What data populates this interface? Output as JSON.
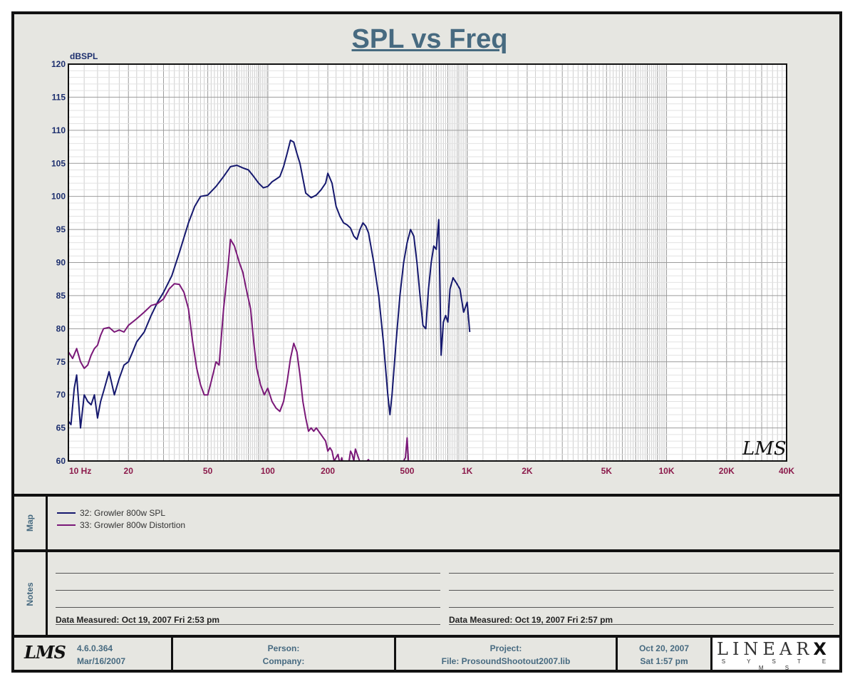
{
  "chart_data": {
    "type": "line",
    "title": "SPL vs Freq",
    "ylabel": "dBSPL",
    "ylim": [
      60,
      120
    ],
    "xlim": [
      10,
      40000
    ],
    "xscale": "log",
    "grid": true,
    "ytick_labels": [
      "120",
      "115",
      "110",
      "105",
      "100",
      "95",
      "90",
      "85",
      "80",
      "75",
      "70",
      "65",
      "60"
    ],
    "xticks": [
      {
        "v": 10,
        "label": "10  Hz"
      },
      {
        "v": 20,
        "label": "20"
      },
      {
        "v": 50,
        "label": "50"
      },
      {
        "v": 100,
        "label": "100"
      },
      {
        "v": 200,
        "label": "200"
      },
      {
        "v": 500,
        "label": "500"
      },
      {
        "v": 1000,
        "label": "1K"
      },
      {
        "v": 2000,
        "label": "2K"
      },
      {
        "v": 5000,
        "label": "5K"
      },
      {
        "v": 10000,
        "label": "10K"
      },
      {
        "v": 20000,
        "label": "20K"
      },
      {
        "v": 40000,
        "label": "40K"
      }
    ],
    "series": [
      {
        "name": "32: Growler 800w SPL",
        "color": "#15186e",
        "points": [
          [
            10,
            66
          ],
          [
            10.3,
            65.5
          ],
          [
            10.7,
            71
          ],
          [
            11,
            73
          ],
          [
            11.5,
            65
          ],
          [
            12,
            70
          ],
          [
            12.5,
            69
          ],
          [
            13,
            68.5
          ],
          [
            13.5,
            70
          ],
          [
            14,
            66.5
          ],
          [
            14.5,
            69
          ],
          [
            15,
            70.5
          ],
          [
            16,
            73.5
          ],
          [
            17,
            70
          ],
          [
            18,
            72.5
          ],
          [
            19,
            74.5
          ],
          [
            20,
            75
          ],
          [
            21,
            76.5
          ],
          [
            22,
            78
          ],
          [
            24,
            79.5
          ],
          [
            26,
            82
          ],
          [
            28,
            84
          ],
          [
            30,
            85.5
          ],
          [
            33,
            88
          ],
          [
            36,
            91.5
          ],
          [
            40,
            96
          ],
          [
            43,
            98.5
          ],
          [
            46,
            100
          ],
          [
            50,
            100.2
          ],
          [
            55,
            101.5
          ],
          [
            60,
            103
          ],
          [
            65,
            104.5
          ],
          [
            70,
            104.7
          ],
          [
            75,
            104.3
          ],
          [
            80,
            104
          ],
          [
            85,
            103
          ],
          [
            90,
            102
          ],
          [
            95,
            101.3
          ],
          [
            100,
            101.5
          ],
          [
            105,
            102.2
          ],
          [
            110,
            102.6
          ],
          [
            115,
            103
          ],
          [
            120,
            104.5
          ],
          [
            125,
            106.5
          ],
          [
            130,
            108.5
          ],
          [
            135,
            108.2
          ],
          [
            140,
            106.5
          ],
          [
            145,
            105
          ],
          [
            155,
            100.5
          ],
          [
            165,
            99.8
          ],
          [
            175,
            100.2
          ],
          [
            185,
            101
          ],
          [
            195,
            102
          ],
          [
            200,
            103.5
          ],
          [
            210,
            102
          ],
          [
            220,
            98.5
          ],
          [
            230,
            97
          ],
          [
            240,
            96
          ],
          [
            250,
            95.7
          ],
          [
            260,
            95.2
          ],
          [
            270,
            94
          ],
          [
            280,
            93.5
          ],
          [
            290,
            95
          ],
          [
            300,
            96
          ],
          [
            310,
            95.5
          ],
          [
            320,
            94.5
          ],
          [
            340,
            90
          ],
          [
            360,
            85
          ],
          [
            380,
            78
          ],
          [
            400,
            70
          ],
          [
            410,
            67
          ],
          [
            420,
            70
          ],
          [
            440,
            78
          ],
          [
            460,
            85
          ],
          [
            480,
            90
          ],
          [
            500,
            93
          ],
          [
            520,
            95
          ],
          [
            540,
            94
          ],
          [
            560,
            90
          ],
          [
            580,
            85
          ],
          [
            600,
            80.5
          ],
          [
            620,
            80
          ],
          [
            640,
            86
          ],
          [
            660,
            90
          ],
          [
            680,
            92.5
          ],
          [
            700,
            92
          ],
          [
            720,
            96.5
          ],
          [
            740,
            76
          ],
          [
            760,
            81
          ],
          [
            780,
            82
          ],
          [
            800,
            81
          ],
          [
            820,
            86
          ],
          [
            850,
            87.7
          ],
          [
            880,
            87
          ],
          [
            920,
            86
          ],
          [
            960,
            82.5
          ],
          [
            1000,
            84
          ],
          [
            1030,
            79.5
          ]
        ]
      },
      {
        "name": "33: Growler 800w Distortion",
        "color": "#7a1878",
        "points": [
          [
            10,
            76.5
          ],
          [
            10.5,
            75.5
          ],
          [
            11,
            77
          ],
          [
            11.5,
            75
          ],
          [
            12,
            74
          ],
          [
            12.5,
            74.5
          ],
          [
            13,
            76
          ],
          [
            13.5,
            77
          ],
          [
            14,
            77.5
          ],
          [
            14.5,
            79
          ],
          [
            15,
            80
          ],
          [
            16,
            80.2
          ],
          [
            17,
            79.5
          ],
          [
            18,
            79.8
          ],
          [
            19,
            79.5
          ],
          [
            20,
            80.5
          ],
          [
            22,
            81.5
          ],
          [
            24,
            82.5
          ],
          [
            26,
            83.5
          ],
          [
            28,
            83.8
          ],
          [
            30,
            84.5
          ],
          [
            32,
            86
          ],
          [
            34,
            86.8
          ],
          [
            36,
            86.7
          ],
          [
            38,
            85.5
          ],
          [
            40,
            83
          ],
          [
            42,
            78
          ],
          [
            44,
            74
          ],
          [
            46,
            71.5
          ],
          [
            48,
            70
          ],
          [
            50,
            70
          ],
          [
            52,
            72
          ],
          [
            55,
            75
          ],
          [
            57,
            74.5
          ],
          [
            60,
            83
          ],
          [
            63,
            89
          ],
          [
            65,
            93.5
          ],
          [
            68,
            92.5
          ],
          [
            72,
            90
          ],
          [
            75,
            88.5
          ],
          [
            78,
            86
          ],
          [
            82,
            83
          ],
          [
            85,
            78
          ],
          [
            88,
            74
          ],
          [
            92,
            71.5
          ],
          [
            96,
            70
          ],
          [
            100,
            71
          ],
          [
            105,
            69
          ],
          [
            110,
            68
          ],
          [
            115,
            67.5
          ],
          [
            120,
            69
          ],
          [
            125,
            72
          ],
          [
            130,
            75.5
          ],
          [
            135,
            77.8
          ],
          [
            140,
            76.5
          ],
          [
            145,
            73
          ],
          [
            150,
            69
          ],
          [
            155,
            66.5
          ],
          [
            160,
            64.5
          ],
          [
            165,
            65
          ],
          [
            170,
            64.5
          ],
          [
            175,
            65
          ],
          [
            185,
            64
          ],
          [
            195,
            63
          ],
          [
            200,
            61.5
          ],
          [
            205,
            62
          ],
          [
            210,
            61.5
          ],
          [
            215,
            60
          ],
          [
            225,
            61
          ],
          [
            230,
            59.5
          ],
          [
            235,
            60.5
          ],
          [
            240,
            59
          ],
          [
            245,
            60
          ],
          [
            255,
            59.8
          ],
          [
            260,
            61.5
          ],
          [
            265,
            61
          ],
          [
            270,
            60
          ],
          [
            275,
            61.8
          ],
          [
            285,
            60.5
          ],
          [
            290,
            59.8
          ],
          [
            300,
            59.5
          ],
          [
            320,
            60.2
          ],
          [
            340,
            58.5
          ],
          [
            360,
            59.8
          ],
          [
            380,
            59
          ],
          [
            400,
            59.5
          ],
          [
            420,
            60
          ],
          [
            440,
            59.5
          ],
          [
            460,
            59
          ],
          [
            480,
            60
          ],
          [
            490,
            60.5
          ],
          [
            500,
            63.5
          ],
          [
            510,
            59
          ]
        ]
      }
    ]
  },
  "map": {
    "label": "Map",
    "legend": [
      "32: Growler 800w SPL",
      "33: Growler 800w Distortion"
    ]
  },
  "notes": {
    "label": "Notes",
    "left": "Data Measured: Oct 19, 2007  Fri  2:53 pm",
    "right": "Data Measured: Oct 19, 2007  Fri  2:57 pm"
  },
  "footer": {
    "logo": "LMS",
    "version": "4.6.0.364",
    "version_date": "Mar/16/2007",
    "person": "Person:",
    "company": "Company:",
    "project": "Project:",
    "file": "File: ProsoundShootout2007.lib",
    "date": "Oct 20, 2007",
    "day_time": "Sat  1:57 pm",
    "brand": "LINEAR",
    "brand_x": "X",
    "brand_sub": "S Y S T E M S"
  },
  "watermark": "LMS",
  "colors": {
    "title": "#476a80",
    "axis_tick": "#8b1a4b",
    "y_tick": "#1d2f6e"
  }
}
